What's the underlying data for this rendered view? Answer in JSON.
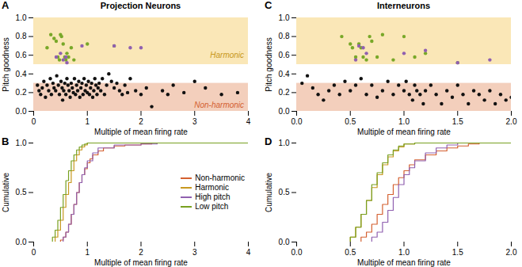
{
  "chart_data": [
    {
      "type": "scatter",
      "title": "Projection Neurons",
      "x_label": "Multiple of mean firing rate",
      "y_label": "Pitch goodness",
      "xlim": [
        0,
        4
      ],
      "ylim": [
        0,
        1
      ],
      "xticks": [
        0,
        1,
        2,
        3,
        4
      ],
      "yticks": [
        {
          "value": 0,
          "label": "0.0"
        },
        0.2,
        0.4,
        0.6,
        0.8,
        {
          "value": 1,
          "label": "1.0"
        }
      ],
      "grid": false,
      "bands": [
        {
          "y": [
            0.5,
            1.0
          ],
          "color": "#f5d070"
        },
        {
          "y": [
            0.0,
            0.3
          ],
          "color": "#e8a07a"
        }
      ],
      "annotations": [
        {
          "text": "A"
        },
        {
          "text": "Harmonic",
          "x": 3.92,
          "y": 0.57,
          "color": "#c89820"
        },
        {
          "text": "Non-harmonic",
          "x": 3.92,
          "y": 0.04,
          "color": "#d46030"
        }
      ],
      "series": [
        {
          "color": "#111111",
          "x": [
            0.07,
            0.1,
            0.13,
            0.16,
            0.19,
            0.22,
            0.25,
            0.28,
            0.31,
            0.33,
            0.36,
            0.38,
            0.41,
            0.43,
            0.46,
            0.48,
            0.51,
            0.53,
            0.54,
            0.56,
            0.58,
            0.6,
            0.62,
            0.64,
            0.66,
            0.68,
            0.7,
            0.72,
            0.74,
            0.76,
            0.78,
            0.8,
            0.82,
            0.84,
            0.86,
            0.88,
            0.9,
            0.92,
            0.94,
            0.96,
            0.98,
            1.0,
            1.02,
            1.04,
            1.06,
            1.08,
            1.1,
            1.12,
            1.14,
            1.16,
            1.18,
            1.2,
            1.22,
            1.25,
            1.28,
            1.32,
            1.36,
            1.4,
            1.45,
            1.5,
            1.55,
            1.6,
            1.65,
            1.7,
            1.75,
            1.8,
            1.9,
            2.0,
            2.1,
            2.2,
            2.4,
            2.5,
            2.6,
            2.8,
            3.0,
            3.2,
            3.5,
            3.8
          ],
          "values": [
            0.28,
            0.22,
            0.18,
            0.25,
            0.32,
            0.15,
            0.28,
            0.22,
            0.35,
            0.18,
            0.3,
            0.25,
            0.22,
            0.38,
            0.28,
            0.18,
            0.32,
            0.25,
            0.12,
            0.22,
            0.3,
            0.18,
            0.35,
            0.28,
            0.22,
            0.15,
            0.3,
            0.25,
            0.2,
            0.35,
            0.18,
            0.28,
            0.22,
            0.32,
            0.15,
            0.25,
            0.3,
            0.18,
            0.35,
            0.22,
            0.28,
            0.2,
            0.32,
            0.18,
            0.25,
            0.3,
            0.15,
            0.22,
            0.35,
            0.28,
            0.18,
            0.25,
            0.3,
            0.22,
            0.35,
            0.18,
            0.28,
            0.4,
            0.32,
            0.25,
            0.3,
            0.22,
            0.18,
            0.28,
            0.2,
            0.35,
            0.22,
            0.18,
            0.25,
            0.05,
            0.22,
            0.18,
            0.28,
            0.2,
            0.32,
            0.25,
            0.18,
            0.2
          ]
        },
        {
          "color": "#78a828",
          "x": [
            0.25,
            0.32,
            0.38,
            0.42,
            0.45,
            0.48,
            0.5,
            0.52,
            0.55,
            0.58,
            0.6,
            0.62,
            0.65,
            0.7,
            0.75,
            1.0,
            1.5
          ],
          "values": [
            0.68,
            0.82,
            0.78,
            0.75,
            0.58,
            0.55,
            0.82,
            0.8,
            0.72,
            0.58,
            0.55,
            0.62,
            0.58,
            0.68,
            0.55,
            0.72,
            0.7
          ]
        },
        {
          "color": "#9060b0",
          "x": [
            0.42,
            0.5,
            0.55,
            0.6,
            0.62,
            0.9,
            1.5,
            1.8,
            2.0
          ],
          "values": [
            0.58,
            0.62,
            0.55,
            0.58,
            0.52,
            0.7,
            0.7,
            0.68,
            0.68
          ]
        }
      ]
    },
    {
      "type": "scatter",
      "title": "Interneurons",
      "x_label": "Multiple of mean firing rate",
      "y_label": "Pitch goodness",
      "xlim": [
        0,
        2
      ],
      "ylim": [
        0,
        1
      ],
      "xticks": [
        {
          "value": 0,
          "label": "0.0"
        },
        0.5,
        {
          "value": 1.0,
          "label": "1.0"
        },
        1.5,
        {
          "value": 2.0,
          "label": "2.0"
        }
      ],
      "yticks": [
        {
          "value": 0,
          "label": "0.0"
        },
        0.2,
        0.4,
        0.6,
        0.8,
        {
          "value": 1,
          "label": "1.0"
        }
      ],
      "grid": false,
      "bands": [
        {
          "y": [
            0.5,
            1.0
          ],
          "color": "#f5d070"
        },
        {
          "y": [
            0.0,
            0.3
          ],
          "color": "#e8a07a"
        }
      ],
      "annotations": [
        {
          "text": "C"
        }
      ],
      "series": [
        {
          "color": "#111111",
          "x": [
            0.05,
            0.1,
            0.15,
            0.2,
            0.25,
            0.3,
            0.35,
            0.4,
            0.45,
            0.5,
            0.55,
            0.6,
            0.65,
            0.7,
            0.75,
            0.8,
            0.85,
            0.9,
            0.95,
            1.0,
            1.02,
            1.05,
            1.08,
            1.1,
            1.12,
            1.15,
            1.18,
            1.2,
            1.25,
            1.3,
            1.35,
            1.4,
            1.45,
            1.5,
            1.55,
            1.6,
            1.65,
            1.7,
            1.75,
            1.8,
            1.85,
            1.9,
            1.95,
            2.0
          ],
          "values": [
            0.3,
            0.38,
            0.25,
            0.18,
            0.12,
            0.22,
            0.28,
            0.18,
            0.32,
            0.22,
            0.28,
            0.35,
            0.18,
            0.28,
            0.15,
            0.22,
            0.32,
            0.18,
            0.28,
            0.22,
            0.32,
            0.18,
            0.12,
            0.28,
            0.22,
            0.18,
            0.08,
            0.22,
            0.28,
            0.18,
            0.08,
            0.22,
            0.15,
            0.28,
            0.18,
            0.08,
            0.22,
            0.18,
            0.12,
            0.22,
            0.08,
            0.18,
            0.12,
            0.15
          ]
        },
        {
          "color": "#78a828",
          "x": [
            0.42,
            0.5,
            0.52,
            0.55,
            0.58,
            0.6,
            0.62,
            0.65,
            0.68,
            0.7,
            0.75,
            0.8,
            0.9,
            1.0,
            1.1,
            1.2,
            1.5
          ],
          "values": [
            0.8,
            0.72,
            0.68,
            0.58,
            0.72,
            0.68,
            0.58,
            0.55,
            0.8,
            0.75,
            0.58,
            0.82,
            0.55,
            0.8,
            0.58,
            0.62,
            0.52
          ]
        },
        {
          "color": "#9060b0",
          "x": [
            0.55,
            0.58,
            0.62,
            0.65,
            1.0,
            1.2,
            1.5,
            1.8
          ],
          "values": [
            0.55,
            0.7,
            0.68,
            0.62,
            0.62,
            0.65,
            0.52,
            0.55
          ]
        }
      ]
    },
    {
      "type": "step",
      "x_label": "Multiple of mean firing rate",
      "y_label": "Cumulative",
      "xlim": [
        0,
        4
      ],
      "ylim": [
        0,
        1
      ],
      "xticks": [
        0,
        1,
        2,
        3,
        4
      ],
      "yticks": [
        {
          "value": 0,
          "label": "0.0"
        },
        0.5,
        {
          "value": 1,
          "label": "1.0"
        }
      ],
      "grid": false,
      "legend": "right",
      "annotations": [
        {
          "text": "B"
        }
      ],
      "series": [
        {
          "name": "Non-harmonic",
          "color": "#d46030",
          "x": [
            0.0,
            0.45,
            0.5,
            0.55,
            0.6,
            0.65,
            0.7,
            0.75,
            0.8,
            0.85,
            0.9,
            0.95,
            1.0,
            1.05,
            1.1,
            1.2,
            1.3,
            1.5,
            1.7,
            2.0,
            2.2,
            2.4,
            4.0
          ],
          "values": [
            0.0,
            0.0,
            0.02,
            0.05,
            0.1,
            0.18,
            0.28,
            0.38,
            0.5,
            0.6,
            0.68,
            0.74,
            0.8,
            0.84,
            0.88,
            0.92,
            0.95,
            0.97,
            0.98,
            0.99,
            1.0,
            1.0,
            1.0
          ]
        },
        {
          "name": "Harmonic",
          "color": "#c89820",
          "x": [
            0.0,
            0.35,
            0.4,
            0.45,
            0.5,
            0.55,
            0.6,
            0.65,
            0.7,
            0.75,
            0.8,
            0.85,
            0.9,
            0.95,
            1.0,
            1.1,
            1.2,
            1.5,
            4.0
          ],
          "values": [
            0.0,
            0.0,
            0.05,
            0.12,
            0.22,
            0.35,
            0.48,
            0.6,
            0.72,
            0.82,
            0.88,
            0.93,
            0.96,
            0.98,
            1.0,
            1.0,
            1.0,
            1.0,
            1.0
          ]
        },
        {
          "name": "High pitch",
          "color": "#9060b0",
          "x": [
            0.0,
            0.5,
            0.55,
            0.6,
            0.65,
            0.7,
            0.75,
            0.8,
            0.85,
            0.9,
            0.95,
            1.0,
            1.1,
            1.2,
            1.5,
            2.0,
            2.3,
            4.0
          ],
          "values": [
            0.0,
            0.0,
            0.05,
            0.1,
            0.18,
            0.28,
            0.38,
            0.5,
            0.6,
            0.68,
            0.75,
            0.82,
            0.9,
            0.95,
            0.98,
            0.99,
            1.0,
            1.0
          ]
        },
        {
          "name": "Low pitch",
          "color": "#78a020",
          "x": [
            0.0,
            0.3,
            0.35,
            0.4,
            0.45,
            0.5,
            0.55,
            0.6,
            0.65,
            0.7,
            0.75,
            0.8,
            0.85,
            0.9,
            0.95,
            1.0,
            1.1,
            1.2,
            4.0
          ],
          "values": [
            0.0,
            0.0,
            0.05,
            0.12,
            0.22,
            0.35,
            0.48,
            0.62,
            0.72,
            0.82,
            0.88,
            0.93,
            0.96,
            0.98,
            0.99,
            1.0,
            1.0,
            1.0,
            1.0
          ]
        }
      ]
    },
    {
      "type": "step",
      "x_label": "Multiple of mean firing rate",
      "y_label": "Cumulative",
      "xlim": [
        0,
        2
      ],
      "ylim": [
        0,
        1
      ],
      "xticks": [
        {
          "value": 0,
          "label": "0.0"
        },
        0.5,
        {
          "value": 1.0,
          "label": "1.0"
        },
        1.5,
        {
          "value": 2.0,
          "label": "2.0"
        }
      ],
      "yticks": [
        {
          "value": 0,
          "label": "0.0"
        },
        0.5,
        {
          "value": 1,
          "label": "1.0"
        }
      ],
      "grid": false,
      "annotations": [
        {
          "text": "D"
        }
      ],
      "series": [
        {
          "color": "#d46030",
          "x": [
            0.0,
            0.55,
            0.6,
            0.65,
            0.7,
            0.75,
            0.8,
            0.85,
            0.9,
            0.95,
            1.0,
            1.05,
            1.1,
            1.2,
            1.3,
            1.4,
            1.5,
            1.6,
            1.7,
            1.8,
            2.0
          ],
          "values": [
            0.0,
            0.0,
            0.05,
            0.1,
            0.18,
            0.28,
            0.38,
            0.48,
            0.58,
            0.65,
            0.72,
            0.78,
            0.83,
            0.88,
            0.92,
            0.95,
            0.97,
            0.99,
            1.0,
            1.0,
            1.0
          ]
        },
        {
          "color": "#c89820",
          "x": [
            0.0,
            0.45,
            0.5,
            0.55,
            0.6,
            0.65,
            0.7,
            0.75,
            0.8,
            0.85,
            0.9,
            0.95,
            1.0,
            1.1,
            1.2,
            1.3,
            1.4,
            2.0
          ],
          "values": [
            0.0,
            0.0,
            0.05,
            0.15,
            0.28,
            0.42,
            0.55,
            0.68,
            0.78,
            0.86,
            0.92,
            0.96,
            0.99,
            1.0,
            1.0,
            1.0,
            1.0,
            1.0
          ]
        },
        {
          "color": "#9060b0",
          "x": [
            0.0,
            0.65,
            0.7,
            0.75,
            0.8,
            0.85,
            0.9,
            0.95,
            1.0,
            1.05,
            1.1,
            1.2,
            1.3,
            1.4,
            1.5,
            1.6,
            2.0
          ],
          "values": [
            0.0,
            0.0,
            0.05,
            0.1,
            0.2,
            0.32,
            0.45,
            0.58,
            0.68,
            0.75,
            0.82,
            0.9,
            0.95,
            0.98,
            1.0,
            1.0,
            1.0
          ]
        },
        {
          "color": "#78a020",
          "x": [
            0.0,
            0.45,
            0.5,
            0.55,
            0.6,
            0.65,
            0.7,
            0.75,
            0.8,
            0.85,
            0.9,
            0.95,
            1.0,
            1.1,
            1.2,
            1.3,
            2.0
          ],
          "values": [
            0.0,
            0.0,
            0.05,
            0.15,
            0.28,
            0.42,
            0.58,
            0.7,
            0.8,
            0.88,
            0.93,
            0.97,
            0.99,
            1.0,
            1.0,
            1.0,
            1.0
          ]
        }
      ]
    }
  ]
}
